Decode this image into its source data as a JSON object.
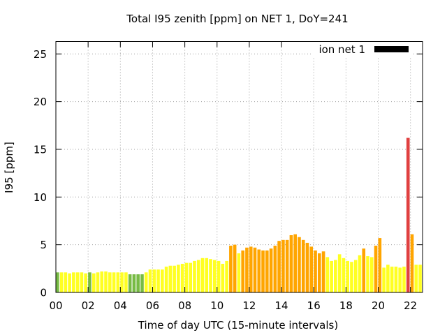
{
  "chart_data": {
    "type": "bar",
    "title": "Total I95 zenith [ppm] on NET 1, DoY=241",
    "xlabel": "Time of day UTC (15-minute intervals)",
    "ylabel": "I95 [ppm]",
    "xlim": [
      0,
      22.75
    ],
    "ylim": [
      0,
      26.3
    ],
    "bar_width_hours": 0.2,
    "grid": true,
    "xticks": [
      0,
      2,
      4,
      6,
      8,
      10,
      12,
      14,
      16,
      18,
      20,
      22
    ],
    "xtick_labels": [
      "00",
      "02",
      "04",
      "06",
      "08",
      "10",
      "12",
      "14",
      "16",
      "18",
      "20",
      "22"
    ],
    "yticks": [
      0,
      5,
      10,
      15,
      20,
      25
    ],
    "ytick_labels": [
      "0",
      "5",
      "10",
      "15",
      "20",
      "25"
    ],
    "legend": {
      "position": "top-right",
      "label": "ion net 1",
      "color": "#000000"
    },
    "colors": {
      "yellow": "#ffff22",
      "green": "#77bb44",
      "orange": "#ffa500",
      "red": "#e04040"
    },
    "bars": [
      {
        "t": 0.0,
        "v": 2.1,
        "c": "green"
      },
      {
        "t": 0.25,
        "v": 2.1,
        "c": "yellow"
      },
      {
        "t": 0.5,
        "v": 2.1,
        "c": "yellow"
      },
      {
        "t": 0.75,
        "v": 2.0,
        "c": "yellow"
      },
      {
        "t": 1.0,
        "v": 2.1,
        "c": "yellow"
      },
      {
        "t": 1.25,
        "v": 2.1,
        "c": "yellow"
      },
      {
        "t": 1.5,
        "v": 2.1,
        "c": "yellow"
      },
      {
        "t": 1.75,
        "v": 2.0,
        "c": "yellow"
      },
      {
        "t": 2.0,
        "v": 2.1,
        "c": "green"
      },
      {
        "t": 2.25,
        "v": 2.0,
        "c": "yellow"
      },
      {
        "t": 2.5,
        "v": 2.1,
        "c": "yellow"
      },
      {
        "t": 2.75,
        "v": 2.2,
        "c": "yellow"
      },
      {
        "t": 3.0,
        "v": 2.2,
        "c": "yellow"
      },
      {
        "t": 3.25,
        "v": 2.1,
        "c": "yellow"
      },
      {
        "t": 3.5,
        "v": 2.1,
        "c": "yellow"
      },
      {
        "t": 3.75,
        "v": 2.1,
        "c": "yellow"
      },
      {
        "t": 4.0,
        "v": 2.1,
        "c": "yellow"
      },
      {
        "t": 4.25,
        "v": 2.1,
        "c": "yellow"
      },
      {
        "t": 4.5,
        "v": 1.9,
        "c": "green"
      },
      {
        "t": 4.75,
        "v": 1.9,
        "c": "green"
      },
      {
        "t": 5.0,
        "v": 1.9,
        "c": "green"
      },
      {
        "t": 5.25,
        "v": 1.9,
        "c": "green"
      },
      {
        "t": 5.5,
        "v": 2.1,
        "c": "yellow"
      },
      {
        "t": 5.75,
        "v": 2.4,
        "c": "yellow"
      },
      {
        "t": 6.0,
        "v": 2.4,
        "c": "yellow"
      },
      {
        "t": 6.25,
        "v": 2.4,
        "c": "yellow"
      },
      {
        "t": 6.5,
        "v": 2.4,
        "c": "yellow"
      },
      {
        "t": 6.75,
        "v": 2.7,
        "c": "yellow"
      },
      {
        "t": 7.0,
        "v": 2.8,
        "c": "yellow"
      },
      {
        "t": 7.25,
        "v": 2.8,
        "c": "yellow"
      },
      {
        "t": 7.5,
        "v": 2.9,
        "c": "yellow"
      },
      {
        "t": 7.75,
        "v": 3.0,
        "c": "yellow"
      },
      {
        "t": 8.0,
        "v": 3.1,
        "c": "yellow"
      },
      {
        "t": 8.25,
        "v": 3.1,
        "c": "yellow"
      },
      {
        "t": 8.5,
        "v": 3.3,
        "c": "yellow"
      },
      {
        "t": 8.75,
        "v": 3.4,
        "c": "yellow"
      },
      {
        "t": 9.0,
        "v": 3.6,
        "c": "yellow"
      },
      {
        "t": 9.25,
        "v": 3.6,
        "c": "yellow"
      },
      {
        "t": 9.5,
        "v": 3.5,
        "c": "yellow"
      },
      {
        "t": 9.75,
        "v": 3.4,
        "c": "yellow"
      },
      {
        "t": 10.0,
        "v": 3.3,
        "c": "yellow"
      },
      {
        "t": 10.25,
        "v": 3.0,
        "c": "yellow"
      },
      {
        "t": 10.5,
        "v": 3.3,
        "c": "yellow"
      },
      {
        "t": 10.75,
        "v": 4.9,
        "c": "orange"
      },
      {
        "t": 11.0,
        "v": 5.0,
        "c": "orange"
      },
      {
        "t": 11.25,
        "v": 4.1,
        "c": "yellow"
      },
      {
        "t": 11.5,
        "v": 4.4,
        "c": "orange"
      },
      {
        "t": 11.75,
        "v": 4.7,
        "c": "orange"
      },
      {
        "t": 12.0,
        "v": 4.8,
        "c": "orange"
      },
      {
        "t": 12.25,
        "v": 4.7,
        "c": "orange"
      },
      {
        "t": 12.5,
        "v": 4.5,
        "c": "orange"
      },
      {
        "t": 12.75,
        "v": 4.4,
        "c": "orange"
      },
      {
        "t": 13.0,
        "v": 4.4,
        "c": "orange"
      },
      {
        "t": 13.25,
        "v": 4.6,
        "c": "orange"
      },
      {
        "t": 13.5,
        "v": 4.9,
        "c": "orange"
      },
      {
        "t": 13.75,
        "v": 5.4,
        "c": "orange"
      },
      {
        "t": 14.0,
        "v": 5.5,
        "c": "orange"
      },
      {
        "t": 14.25,
        "v": 5.5,
        "c": "orange"
      },
      {
        "t": 14.5,
        "v": 6.0,
        "c": "orange"
      },
      {
        "t": 14.75,
        "v": 6.1,
        "c": "orange"
      },
      {
        "t": 15.0,
        "v": 5.8,
        "c": "orange"
      },
      {
        "t": 15.25,
        "v": 5.5,
        "c": "orange"
      },
      {
        "t": 15.5,
        "v": 5.2,
        "c": "orange"
      },
      {
        "t": 15.75,
        "v": 4.8,
        "c": "orange"
      },
      {
        "t": 16.0,
        "v": 4.4,
        "c": "orange"
      },
      {
        "t": 16.25,
        "v": 4.1,
        "c": "orange"
      },
      {
        "t": 16.5,
        "v": 4.3,
        "c": "orange"
      },
      {
        "t": 16.75,
        "v": 3.7,
        "c": "yellow"
      },
      {
        "t": 17.0,
        "v": 3.3,
        "c": "yellow"
      },
      {
        "t": 17.25,
        "v": 3.4,
        "c": "yellow"
      },
      {
        "t": 17.5,
        "v": 4.0,
        "c": "yellow"
      },
      {
        "t": 17.75,
        "v": 3.6,
        "c": "yellow"
      },
      {
        "t": 18.0,
        "v": 3.3,
        "c": "yellow"
      },
      {
        "t": 18.25,
        "v": 3.2,
        "c": "yellow"
      },
      {
        "t": 18.5,
        "v": 3.4,
        "c": "yellow"
      },
      {
        "t": 18.75,
        "v": 3.9,
        "c": "yellow"
      },
      {
        "t": 19.0,
        "v": 4.6,
        "c": "orange"
      },
      {
        "t": 19.25,
        "v": 3.8,
        "c": "yellow"
      },
      {
        "t": 19.5,
        "v": 3.7,
        "c": "yellow"
      },
      {
        "t": 19.75,
        "v": 4.9,
        "c": "orange"
      },
      {
        "t": 20.0,
        "v": 5.7,
        "c": "orange"
      },
      {
        "t": 20.25,
        "v": 2.6,
        "c": "yellow"
      },
      {
        "t": 20.5,
        "v": 2.9,
        "c": "yellow"
      },
      {
        "t": 20.75,
        "v": 2.7,
        "c": "yellow"
      },
      {
        "t": 21.0,
        "v": 2.7,
        "c": "yellow"
      },
      {
        "t": 21.25,
        "v": 2.6,
        "c": "yellow"
      },
      {
        "t": 21.5,
        "v": 2.7,
        "c": "yellow"
      },
      {
        "t": 21.75,
        "v": 16.2,
        "c": "red"
      },
      {
        "t": 22.0,
        "v": 6.1,
        "c": "orange"
      },
      {
        "t": 22.25,
        "v": 2.9,
        "c": "yellow"
      },
      {
        "t": 22.5,
        "v": 2.9,
        "c": "yellow"
      }
    ]
  }
}
